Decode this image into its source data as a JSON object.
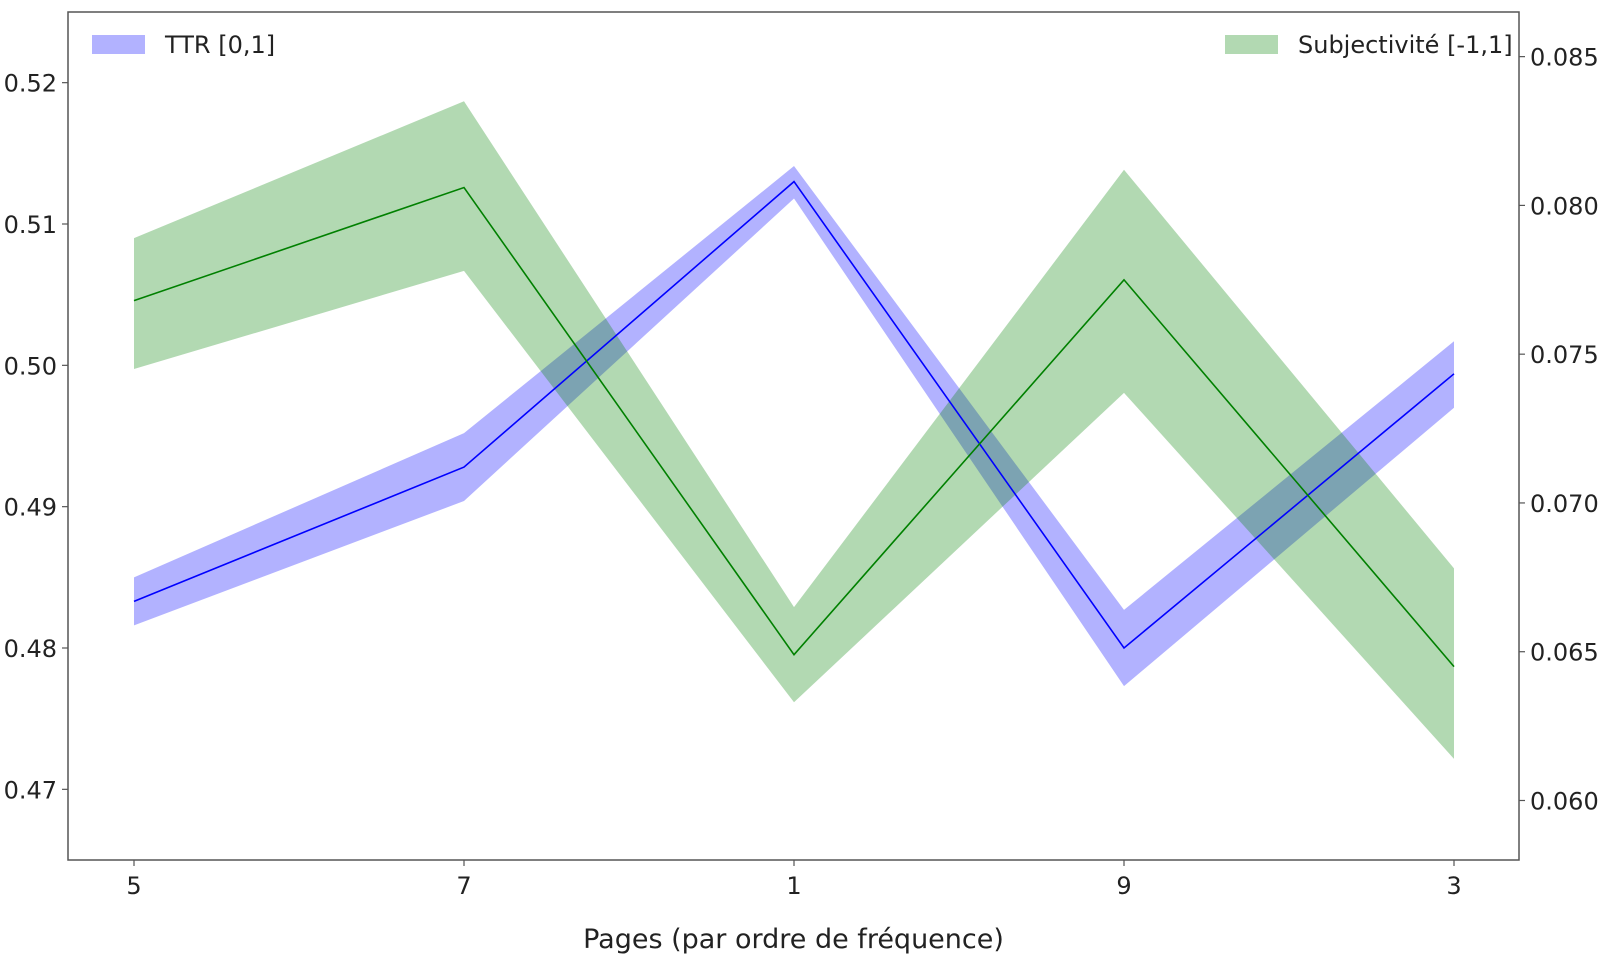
{
  "chart_data": {
    "type": "line",
    "xlabel": "Pages (par ordre de fréquence)",
    "categories": [
      "5",
      "7",
      "1",
      "9",
      "3"
    ],
    "y_left": {
      "lim": [
        0.465,
        0.525
      ],
      "ticks": [
        0.47,
        0.48,
        0.49,
        0.5,
        0.51,
        0.52
      ],
      "tick_labels": [
        "0.47",
        "0.48",
        "0.49",
        "0.50",
        "0.51",
        "0.52"
      ]
    },
    "y_right": {
      "lim": [
        0.058,
        0.0865
      ],
      "ticks": [
        0.06,
        0.065,
        0.07,
        0.075,
        0.08,
        0.085
      ],
      "tick_labels": [
        "0.060",
        "0.065",
        "0.070",
        "0.075",
        "0.080",
        "0.085"
      ]
    },
    "series": [
      {
        "name": "TTR [0,1]",
        "axis": "left",
        "line_color": "#0000ff",
        "band_color": "#0000ff",
        "band_opacity": 0.3,
        "values": [
          0.4833,
          0.4928,
          0.513,
          0.48,
          0.4994
        ],
        "lower": [
          0.4816,
          0.4904,
          0.5118,
          0.4773,
          0.497
        ],
        "upper": [
          0.485,
          0.4952,
          0.5141,
          0.4827,
          0.5017
        ]
      },
      {
        "name": "Subjectivité [-1,1]",
        "axis": "right",
        "line_color": "#008000",
        "band_color": "#008000",
        "band_opacity": 0.3,
        "values": [
          0.0768,
          0.0806,
          0.0649,
          0.0775,
          0.0645
        ],
        "lower": [
          0.0745,
          0.0778,
          0.0633,
          0.0737,
          0.0614
        ],
        "upper": [
          0.0789,
          0.0835,
          0.0665,
          0.0812,
          0.0678
        ]
      }
    ],
    "legend": [
      {
        "label": "TTR [0,1]",
        "placement": "top-left"
      },
      {
        "label": "Subjectivité [-1,1]",
        "placement": "top-right"
      }
    ],
    "grid": false
  }
}
